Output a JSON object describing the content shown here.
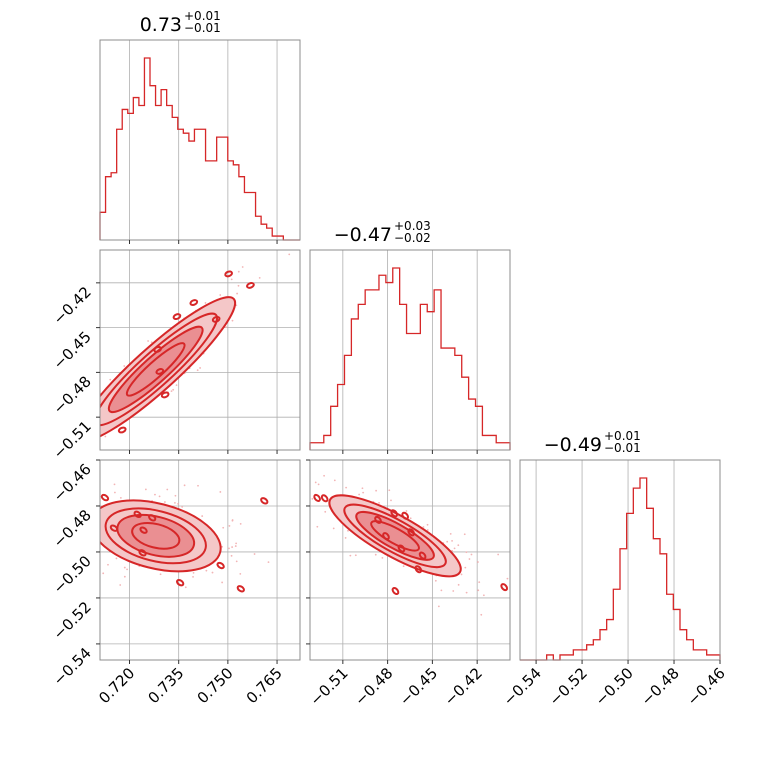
{
  "chart_data": {
    "type": "corner",
    "color": "#d62728",
    "grid": true,
    "parameters": [
      {
        "value": "0.73",
        "plus": "+0.01",
        "minus": "−0.01",
        "range": [
          0.711,
          0.772
        ],
        "ticks": [
          0.72,
          0.735,
          0.75,
          0.765
        ],
        "tick_labels": [
          "0.720",
          "0.735",
          "0.750",
          "0.765"
        ]
      },
      {
        "value": "−0.47",
        "plus": "+0.03",
        "minus": "−0.02",
        "range": [
          -0.532,
          -0.398
        ],
        "ticks": [
          -0.51,
          -0.48,
          -0.45,
          -0.42
        ],
        "tick_labels": [
          "−0.51",
          "−0.48",
          "−0.45",
          "−0.42"
        ]
      },
      {
        "value": "−0.49",
        "plus": "+0.01",
        "minus": "−0.01",
        "range": [
          -0.547,
          -0.46
        ],
        "ticks": [
          -0.54,
          -0.52,
          -0.5,
          -0.48,
          -0.46
        ],
        "tick_labels": [
          "−0.54",
          "−0.52",
          "−0.50",
          "−0.48",
          "−0.46"
        ]
      }
    ],
    "histograms": [
      {
        "parameter": 0,
        "counts": [
          7,
          16,
          17,
          28,
          33,
          32,
          36,
          34,
          46,
          39,
          34,
          38,
          34,
          31,
          28,
          27,
          25,
          28,
          28,
          20,
          20,
          26,
          26,
          20,
          19,
          16,
          12,
          12,
          6,
          4,
          3,
          1,
          1,
          0,
          0,
          0
        ]
      },
      {
        "parameter": 1,
        "counts": [
          1,
          1,
          2,
          6,
          9,
          13,
          18,
          20,
          22,
          22,
          24,
          23,
          25,
          20,
          16,
          16,
          20,
          19,
          22,
          14,
          14,
          13,
          10,
          7,
          6,
          2,
          2,
          1,
          1
        ]
      },
      {
        "parameter": 2,
        "counts": [
          0,
          0,
          0,
          0,
          1,
          0,
          1,
          1,
          2,
          2,
          3,
          4,
          6,
          8,
          14,
          22,
          29,
          34,
          36,
          30,
          24,
          21,
          13,
          10,
          6,
          4,
          2,
          2,
          1,
          1
        ]
      }
    ],
    "pairs": [
      {
        "x": 0,
        "y": 1,
        "center": [
          0.728,
          -0.478
        ],
        "spread": [
          0.011,
          0.022
        ],
        "correlation": 0.92
      },
      {
        "x": 0,
        "y": 2,
        "center": [
          0.728,
          -0.493
        ],
        "spread": [
          0.009,
          0.007
        ],
        "correlation": -0.35
      },
      {
        "x": 1,
        "y": 2,
        "center": [
          -0.475,
          -0.493
        ],
        "spread": [
          0.02,
          0.008
        ],
        "correlation": -0.82
      }
    ]
  }
}
